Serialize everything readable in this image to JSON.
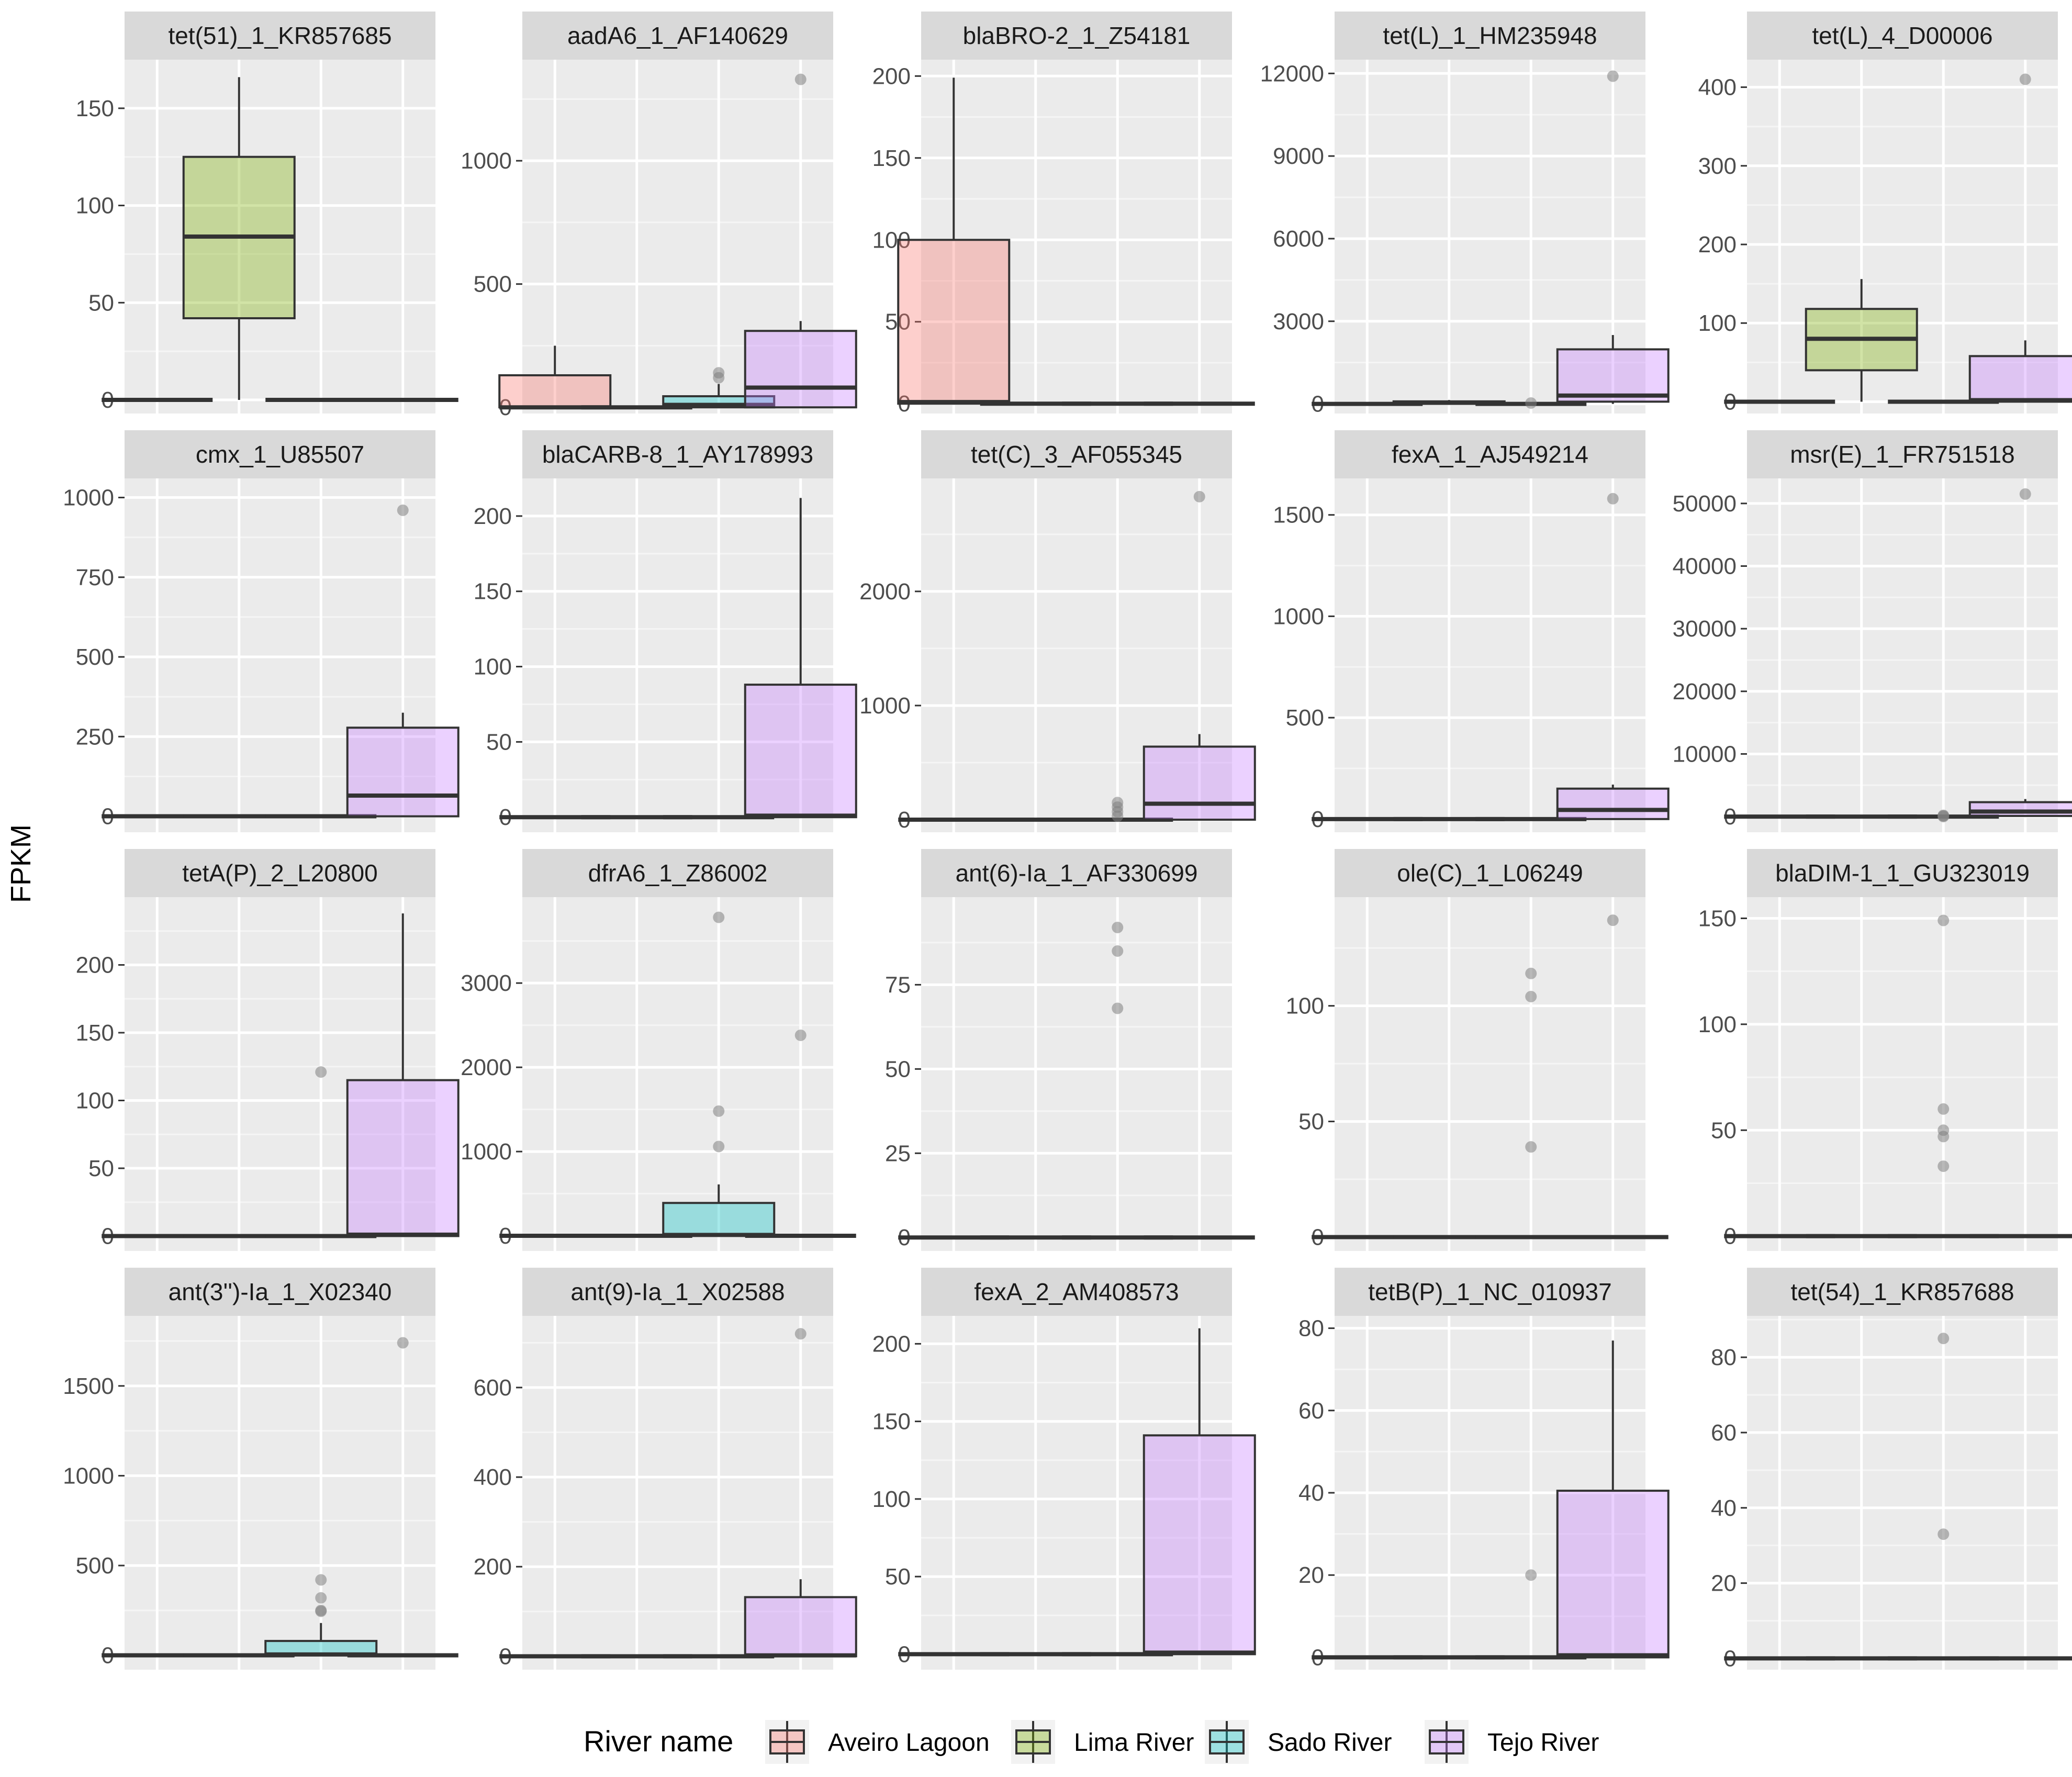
{
  "chart_data": {
    "type": "box",
    "ylabel": "FPKM",
    "legend": {
      "title": "River name",
      "placement": "bottom",
      "items": [
        {
          "name": "Aveiro Lagoon",
          "color": "#F8766D"
        },
        {
          "name": "Lima River",
          "color": "#7CAE00"
        },
        {
          "name": "Sado River",
          "color": "#00BFC4"
        },
        {
          "name": "Tejo River",
          "color": "#C77CFF"
        }
      ]
    },
    "categories": [
      "Aveiro Lagoon",
      "Lima River",
      "Sado River",
      "Tejo River"
    ],
    "panels": [
      {
        "title": "tet(51)_1_KR857685",
        "ylim": [
          -7,
          175
        ],
        "ticks": [
          0,
          50,
          100,
          150
        ],
        "boxes": [
          {
            "q1": 0,
            "med": 0,
            "q3": 0,
            "lo": 0,
            "hi": 0,
            "out": []
          },
          {
            "q1": 42,
            "med": 84,
            "q3": 125,
            "lo": 0,
            "hi": 166,
            "out": []
          },
          {
            "q1": 0,
            "med": 0,
            "q3": 0,
            "lo": 0,
            "hi": 0,
            "out": []
          },
          {
            "q1": 0,
            "med": 0,
            "q3": 0,
            "lo": 0,
            "hi": 0,
            "out": []
          }
        ]
      },
      {
        "title": "aadA6_1_AF140629",
        "ylim": [
          -25,
          1410
        ],
        "ticks": [
          0,
          500,
          1000
        ],
        "boxes": [
          {
            "q1": 0,
            "med": 0,
            "q3": 130,
            "lo": 0,
            "hi": 250,
            "out": []
          },
          {
            "q1": 0,
            "med": 0,
            "q3": 0,
            "lo": 0,
            "hi": 0,
            "out": []
          },
          {
            "q1": 0,
            "med": 10,
            "q3": 45,
            "lo": 0,
            "hi": 95,
            "out": [
              120,
              140
            ]
          },
          {
            "q1": 0,
            "med": 80,
            "q3": 310,
            "lo": 0,
            "hi": 350,
            "out": [
              1330
            ]
          }
        ]
      },
      {
        "title": "blaBRO-2_1_Z54181",
        "ylim": [
          -6,
          210
        ],
        "ticks": [
          0,
          50,
          100,
          150,
          200
        ],
        "boxes": [
          {
            "q1": 0,
            "med": 1,
            "q3": 100,
            "lo": 0,
            "hi": 199,
            "out": []
          },
          {
            "q1": 0,
            "med": 0,
            "q3": 0,
            "lo": 0,
            "hi": 0,
            "out": []
          },
          {
            "q1": 0,
            "med": 0,
            "q3": 0,
            "lo": 0,
            "hi": 0,
            "out": []
          },
          {
            "q1": 0,
            "med": 0,
            "q3": 0,
            "lo": 0,
            "hi": 0,
            "out": []
          }
        ]
      },
      {
        "title": "tet(L)_1_HM235948",
        "ylim": [
          -350,
          12500
        ],
        "ticks": [
          0,
          3000,
          6000,
          9000,
          12000
        ],
        "boxes": [
          {
            "q1": 0,
            "med": 0,
            "q3": 0,
            "lo": 0,
            "hi": 0,
            "out": []
          },
          {
            "q1": 0,
            "med": 40,
            "q3": 90,
            "lo": 0,
            "hi": 140,
            "out": []
          },
          {
            "q1": 0,
            "med": 0,
            "q3": 0,
            "lo": 0,
            "hi": 0,
            "out": [
              30
            ]
          },
          {
            "q1": 80,
            "med": 300,
            "q3": 1980,
            "lo": 0,
            "hi": 2500,
            "out": [
              11900
            ]
          }
        ]
      },
      {
        "title": "tet(L)_4_D00006",
        "ylim": [
          -15,
          435
        ],
        "ticks": [
          0,
          100,
          200,
          300,
          400
        ],
        "boxes": [
          {
            "q1": 0,
            "med": 0,
            "q3": 0,
            "lo": 0,
            "hi": 0,
            "out": []
          },
          {
            "q1": 40,
            "med": 80,
            "q3": 118,
            "lo": 0,
            "hi": 156,
            "out": []
          },
          {
            "q1": 0,
            "med": 0,
            "q3": 0,
            "lo": 0,
            "hi": 0,
            "out": []
          },
          {
            "q1": 0,
            "med": 2,
            "q3": 58,
            "lo": 0,
            "hi": 78,
            "out": [
              410
            ]
          }
        ]
      },
      {
        "title": "cmx_1_U85507",
        "ylim": [
          -50,
          1060
        ],
        "ticks": [
          0,
          250,
          500,
          750,
          1000
        ],
        "boxes": [
          {
            "q1": 0,
            "med": 0,
            "q3": 0,
            "lo": 0,
            "hi": 0,
            "out": []
          },
          {
            "q1": 0,
            "med": 0,
            "q3": 0,
            "lo": 0,
            "hi": 0,
            "out": []
          },
          {
            "q1": 0,
            "med": 0,
            "q3": 0,
            "lo": 0,
            "hi": 0,
            "out": []
          },
          {
            "q1": 0,
            "med": 65,
            "q3": 278,
            "lo": 0,
            "hi": 325,
            "out": [
              960
            ]
          }
        ]
      },
      {
        "title": "blaCARB-8_1_AY178993",
        "ylim": [
          -10,
          225
        ],
        "ticks": [
          0,
          50,
          100,
          150,
          200
        ],
        "boxes": [
          {
            "q1": 0,
            "med": 0,
            "q3": 0,
            "lo": 0,
            "hi": 0,
            "out": []
          },
          {
            "q1": 0,
            "med": 0,
            "q3": 0,
            "lo": 0,
            "hi": 0,
            "out": []
          },
          {
            "q1": 0,
            "med": 0,
            "q3": 0,
            "lo": 0,
            "hi": 0,
            "out": []
          },
          {
            "q1": 0,
            "med": 1,
            "q3": 88,
            "lo": 0,
            "hi": 212,
            "out": []
          }
        ]
      },
      {
        "title": "tet(C)_3_AF055345",
        "ylim": [
          -110,
          2990
        ],
        "ticks": [
          0,
          1000,
          2000
        ],
        "boxes": [
          {
            "q1": 0,
            "med": 0,
            "q3": 0,
            "lo": 0,
            "hi": 0,
            "out": []
          },
          {
            "q1": 0,
            "med": 0,
            "q3": 0,
            "lo": 0,
            "hi": 0,
            "out": []
          },
          {
            "q1": 0,
            "med": 0,
            "q3": 0,
            "lo": 0,
            "hi": 0,
            "out": [
              30,
              70,
              110,
              150
            ]
          },
          {
            "q1": 0,
            "med": 140,
            "q3": 640,
            "lo": 0,
            "hi": 750,
            "out": [
              2830
            ]
          }
        ]
      },
      {
        "title": "fexA_1_AJ549214",
        "ylim": [
          -65,
          1680
        ],
        "ticks": [
          0,
          500,
          1000,
          1500
        ],
        "boxes": [
          {
            "q1": 0,
            "med": 0,
            "q3": 0,
            "lo": 0,
            "hi": 0,
            "out": []
          },
          {
            "q1": 0,
            "med": 0,
            "q3": 0,
            "lo": 0,
            "hi": 0,
            "out": []
          },
          {
            "q1": 0,
            "med": 0,
            "q3": 0,
            "lo": 0,
            "hi": 0,
            "out": []
          },
          {
            "q1": 0,
            "med": 45,
            "q3": 150,
            "lo": 0,
            "hi": 170,
            "out": [
              1580
            ]
          }
        ]
      },
      {
        "title": "msr(E)_1_FR751518",
        "ylim": [
          -2500,
          54000
        ],
        "ticks": [
          0,
          10000,
          20000,
          30000,
          40000,
          50000
        ],
        "boxes": [
          {
            "q1": 0,
            "med": 0,
            "q3": 0,
            "lo": 0,
            "hi": 0,
            "out": []
          },
          {
            "q1": 0,
            "med": 0,
            "q3": 0,
            "lo": 0,
            "hi": 0,
            "out": []
          },
          {
            "q1": 0,
            "med": 0,
            "q3": 0,
            "lo": 0,
            "hi": 0,
            "out": [
              0,
              100,
              200
            ]
          },
          {
            "q1": 100,
            "med": 800,
            "q3": 2300,
            "lo": 0,
            "hi": 2800,
            "out": [
              51500
            ]
          }
        ]
      },
      {
        "title": "tetA(P)_2_L20800",
        "ylim": [
          -11,
          250
        ],
        "ticks": [
          0,
          50,
          100,
          150,
          200
        ],
        "boxes": [
          {
            "q1": 0,
            "med": 0,
            "q3": 0,
            "lo": 0,
            "hi": 0,
            "out": []
          },
          {
            "q1": 0,
            "med": 0,
            "q3": 0,
            "lo": 0,
            "hi": 0,
            "out": []
          },
          {
            "q1": 0,
            "med": 0,
            "q3": 0,
            "lo": 0,
            "hi": 0,
            "out": [
              121
            ]
          },
          {
            "q1": 0,
            "med": 1,
            "q3": 115,
            "lo": 0,
            "hi": 238,
            "out": []
          }
        ]
      },
      {
        "title": "dfrA6_1_Z86002",
        "ylim": [
          -180,
          4020
        ],
        "ticks": [
          0,
          1000,
          2000,
          3000
        ],
        "boxes": [
          {
            "q1": 0,
            "med": 0,
            "q3": 0,
            "lo": 0,
            "hi": 0,
            "out": []
          },
          {
            "q1": 0,
            "med": 0,
            "q3": 0,
            "lo": 0,
            "hi": 0,
            "out": []
          },
          {
            "q1": 0,
            "med": 10,
            "q3": 390,
            "lo": 0,
            "hi": 610,
            "out": [
              1060,
              1480,
              3780
            ]
          },
          {
            "q1": 0,
            "med": 0,
            "q3": 0,
            "lo": 0,
            "hi": 0,
            "out": [
              2380
            ]
          }
        ]
      },
      {
        "title": "ant(6)-Ia_1_AF330699",
        "ylim": [
          -4,
          101
        ],
        "ticks": [
          0,
          25,
          50,
          75
        ],
        "boxes": [
          {
            "q1": 0,
            "med": 0,
            "q3": 0,
            "lo": 0,
            "hi": 0,
            "out": []
          },
          {
            "q1": 0,
            "med": 0,
            "q3": 0,
            "lo": 0,
            "hi": 0,
            "out": []
          },
          {
            "q1": 0,
            "med": 0,
            "q3": 0,
            "lo": 0,
            "hi": 0,
            "out": [
              68,
              85,
              92
            ]
          },
          {
            "q1": 0,
            "med": 0,
            "q3": 0,
            "lo": 0,
            "hi": 0,
            "out": []
          }
        ]
      },
      {
        "title": "ole(C)_1_L06249",
        "ylim": [
          -6,
          147
        ],
        "ticks": [
          0,
          50,
          100
        ],
        "boxes": [
          {
            "q1": 0,
            "med": 0,
            "q3": 0,
            "lo": 0,
            "hi": 0,
            "out": []
          },
          {
            "q1": 0,
            "med": 0,
            "q3": 0,
            "lo": 0,
            "hi": 0,
            "out": []
          },
          {
            "q1": 0,
            "med": 0,
            "q3": 0,
            "lo": 0,
            "hi": 0,
            "out": [
              39,
              104,
              114
            ]
          },
          {
            "q1": 0,
            "med": 0,
            "q3": 0,
            "lo": 0,
            "hi": 0,
            "out": [
              137
            ]
          }
        ]
      },
      {
        "title": "blaDIM-1_1_GU323019",
        "ylim": [
          -7,
          160
        ],
        "ticks": [
          0,
          50,
          100,
          150
        ],
        "boxes": [
          {
            "q1": 0,
            "med": 0,
            "q3": 0,
            "lo": 0,
            "hi": 0,
            "out": []
          },
          {
            "q1": 0,
            "med": 0,
            "q3": 0,
            "lo": 0,
            "hi": 0,
            "out": []
          },
          {
            "q1": 0,
            "med": 0,
            "q3": 0,
            "lo": 0,
            "hi": 0,
            "out": [
              33,
              47,
              50,
              60,
              149
            ]
          },
          {
            "q1": 0,
            "med": 0,
            "q3": 0,
            "lo": 0,
            "hi": 0,
            "out": []
          }
        ]
      },
      {
        "title": "ant(3'')-Ia_1_X02340",
        "ylim": [
          -80,
          1890
        ],
        "ticks": [
          0,
          500,
          1000,
          1500
        ],
        "boxes": [
          {
            "q1": 0,
            "med": 0,
            "q3": 0,
            "lo": 0,
            "hi": 0,
            "out": []
          },
          {
            "q1": 0,
            "med": 0,
            "q3": 0,
            "lo": 0,
            "hi": 0,
            "out": []
          },
          {
            "q1": 0,
            "med": 5,
            "q3": 80,
            "lo": 0,
            "hi": 180,
            "out": [
              245,
              250,
              320,
              420
            ]
          },
          {
            "q1": 0,
            "med": 0,
            "q3": 0,
            "lo": 0,
            "hi": 0,
            "out": [
              1740
            ]
          }
        ]
      },
      {
        "title": "ant(9)-Ia_1_X02588",
        "ylim": [
          -30,
          760
        ],
        "ticks": [
          0,
          200,
          400,
          600
        ],
        "boxes": [
          {
            "q1": 0,
            "med": 0,
            "q3": 0,
            "lo": 0,
            "hi": 0,
            "out": []
          },
          {
            "q1": 0,
            "med": 0,
            "q3": 0,
            "lo": 0,
            "hi": 0,
            "out": []
          },
          {
            "q1": 0,
            "med": 0,
            "q3": 0,
            "lo": 0,
            "hi": 0,
            "out": []
          },
          {
            "q1": 0,
            "med": 2,
            "q3": 132,
            "lo": 0,
            "hi": 172,
            "out": [
              720
            ]
          }
        ]
      },
      {
        "title": "fexA_2_AM408573",
        "ylim": [
          -10,
          218
        ],
        "ticks": [
          0,
          50,
          100,
          150,
          200
        ],
        "boxes": [
          {
            "q1": 0,
            "med": 0,
            "q3": 0,
            "lo": 0,
            "hi": 0,
            "out": []
          },
          {
            "q1": 0,
            "med": 0,
            "q3": 0,
            "lo": 0,
            "hi": 0,
            "out": []
          },
          {
            "q1": 0,
            "med": 0,
            "q3": 0,
            "lo": 0,
            "hi": 0,
            "out": []
          },
          {
            "q1": 0,
            "med": 1,
            "q3": 141,
            "lo": 0,
            "hi": 210,
            "out": []
          }
        ]
      },
      {
        "title": "tetB(P)_1_NC_010937",
        "ylim": [
          -3,
          83
        ],
        "ticks": [
          0,
          20,
          40,
          60,
          80
        ],
        "boxes": [
          {
            "q1": 0,
            "med": 0,
            "q3": 0,
            "lo": 0,
            "hi": 0,
            "out": []
          },
          {
            "q1": 0,
            "med": 0,
            "q3": 0,
            "lo": 0,
            "hi": 0,
            "out": []
          },
          {
            "q1": 0,
            "med": 0,
            "q3": 0,
            "lo": 0,
            "hi": 0,
            "out": [
              20
            ]
          },
          {
            "q1": 0,
            "med": 0.5,
            "q3": 40.5,
            "lo": 0,
            "hi": 77,
            "out": []
          }
        ]
      },
      {
        "title": "tet(54)_1_KR857688",
        "ylim": [
          -3,
          91
        ],
        "ticks": [
          0,
          20,
          40,
          60,
          80
        ],
        "boxes": [
          {
            "q1": 0,
            "med": 0,
            "q3": 0,
            "lo": 0,
            "hi": 0,
            "out": []
          },
          {
            "q1": 0,
            "med": 0,
            "q3": 0,
            "lo": 0,
            "hi": 0,
            "out": []
          },
          {
            "q1": 0,
            "med": 0,
            "q3": 0,
            "lo": 0,
            "hi": 0,
            "out": [
              33,
              85
            ]
          },
          {
            "q1": 0,
            "med": 0,
            "q3": 0,
            "lo": 0,
            "hi": 0,
            "out": []
          }
        ]
      }
    ]
  }
}
